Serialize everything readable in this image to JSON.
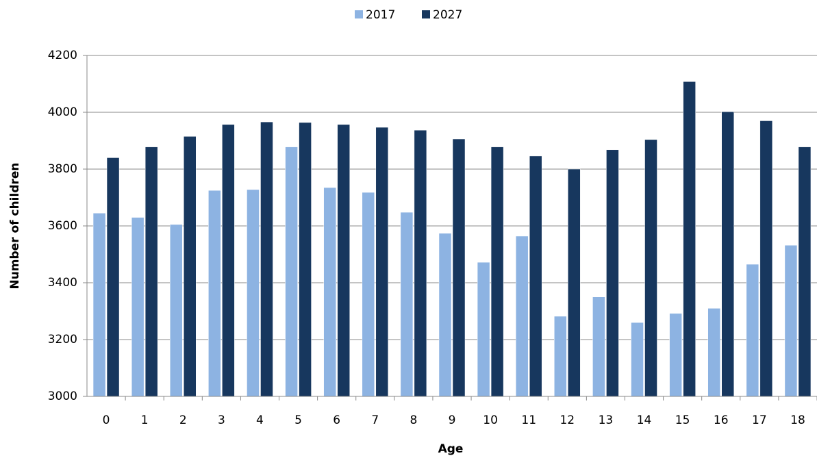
{
  "chart_data": {
    "type": "bar",
    "xlabel": "Age",
    "ylabel": "Number of children",
    "categories": [
      "0",
      "1",
      "2",
      "3",
      "4",
      "5",
      "6",
      "7",
      "8",
      "9",
      "10",
      "11",
      "12",
      "13",
      "14",
      "15",
      "16",
      "17",
      "18"
    ],
    "series": [
      {
        "name": "2017",
        "color": "#8db3e2",
        "values": [
          3645,
          3630,
          3605,
          3725,
          3728,
          3878,
          3735,
          3718,
          3648,
          3574,
          3472,
          3564,
          3282,
          3350,
          3260,
          3292,
          3310,
          3465,
          3532
        ]
      },
      {
        "name": "2027",
        "color": "#17375e",
        "values": [
          3840,
          3878,
          3915,
          3957,
          3966,
          3964,
          3957,
          3947,
          3937,
          3906,
          3878,
          3846,
          3800,
          3868,
          3904,
          4108,
          4002,
          3970,
          3878
        ]
      }
    ],
    "ylim": [
      3000,
      4200
    ],
    "yticks": [
      3000,
      3200,
      3400,
      3600,
      3800,
      4000,
      4200
    ],
    "grid": true,
    "legend": "top"
  }
}
